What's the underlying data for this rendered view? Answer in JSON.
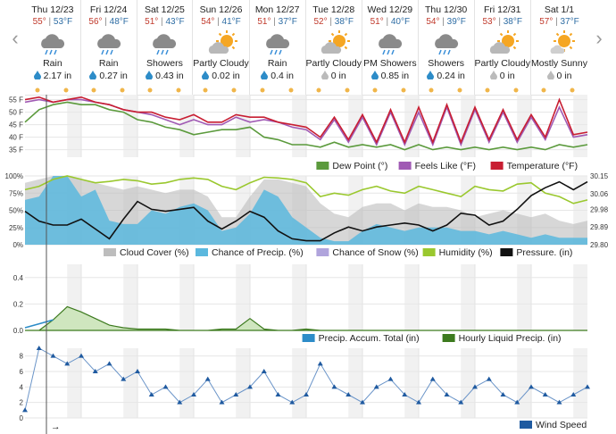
{
  "nav": {
    "prev": "‹",
    "next": "›",
    "bottom_arrow": "→"
  },
  "days": [
    {
      "name": "Thu 12/23",
      "hi": "55°",
      "lo": "53°F",
      "cond": "Rain",
      "precip": "2.17 in",
      "icon": "rain-cloud-icon"
    },
    {
      "name": "Fri 12/24",
      "hi": "56°",
      "lo": "48°F",
      "cond": "Rain",
      "precip": "0.27 in",
      "icon": "rain-cloud-icon"
    },
    {
      "name": "Sat 12/25",
      "hi": "51°",
      "lo": "43°F",
      "cond": "Showers",
      "precip": "0.43 in",
      "icon": "rain-cloud-icon"
    },
    {
      "name": "Sun 12/26",
      "hi": "54°",
      "lo": "41°F",
      "cond": "Partly Cloudy",
      "precip": "0.02 in",
      "icon": "partly-cloudy-icon"
    },
    {
      "name": "Mon 12/27",
      "hi": "51°",
      "lo": "37°F",
      "cond": "Rain",
      "precip": "0.4 in",
      "icon": "rain-cloud-icon"
    },
    {
      "name": "Tue 12/28",
      "hi": "52°",
      "lo": "38°F",
      "cond": "Partly Cloudy",
      "precip": "0 in",
      "icon": "partly-cloudy-icon"
    },
    {
      "name": "Wed 12/29",
      "hi": "51°",
      "lo": "40°F",
      "cond": "PM Showers",
      "precip": "0.85 in",
      "icon": "rain-cloud-icon"
    },
    {
      "name": "Thu 12/30",
      "hi": "54°",
      "lo": "39°F",
      "cond": "Showers",
      "precip": "0.24 in",
      "icon": "rain-cloud-icon"
    },
    {
      "name": "Fri 12/31",
      "hi": "53°",
      "lo": "38°F",
      "cond": "Partly Cloudy",
      "precip": "0 in",
      "icon": "partly-cloudy-icon"
    },
    {
      "name": "Sat 1/1",
      "hi": "57°",
      "lo": "37°F",
      "cond": "Mostly Sunny",
      "precip": "0 in",
      "icon": "mostly-sunny-icon"
    }
  ],
  "colors": {
    "dew": "#5b9a3c",
    "feels": "#a05ab4",
    "temp": "#c81e32",
    "cloud": "#bdbdbd",
    "precip_chance": "#5bb8de",
    "snow": "#b0a4dc",
    "humidity": "#9ac82e",
    "pressure": "#111111",
    "accum": "#2d8cc8",
    "hourly": "#3c7a1e",
    "wind": "#1f5aa0"
  },
  "chart_data": [
    {
      "type": "line",
      "ylim": [
        32,
        57
      ],
      "yticks": [
        35,
        40,
        45,
        50,
        55
      ],
      "yticks_labels": [
        "35 F",
        "40 F",
        "45 F",
        "50 F",
        "55 F"
      ],
      "x_hours": [
        0,
        6,
        12,
        18,
        24,
        30,
        36,
        42,
        48,
        54,
        60,
        66,
        72,
        78,
        84,
        90,
        96,
        102,
        108,
        114,
        120,
        126,
        132,
        138,
        144,
        150,
        156,
        162,
        168,
        174,
        180,
        186,
        192,
        198,
        204,
        210,
        216,
        222,
        228,
        234,
        240
      ],
      "legend": [
        "Dew Point (°)",
        "Feels Like (°F)",
        "Temperature (°F)"
      ],
      "series": [
        {
          "key": "dew",
          "values": [
            46,
            51,
            53,
            54,
            53,
            53,
            51,
            50,
            47,
            46,
            44,
            43,
            41,
            42,
            43,
            43,
            44,
            40,
            39,
            37,
            37,
            36,
            38,
            36,
            37,
            36,
            37,
            35,
            37,
            35,
            36,
            35,
            36,
            35,
            36,
            35,
            36,
            35,
            37,
            36,
            37
          ]
        },
        {
          "key": "feels",
          "values": [
            54,
            55,
            54,
            55,
            55,
            54,
            53,
            51,
            50,
            49,
            47,
            45,
            47,
            45,
            45,
            48,
            46,
            47,
            46,
            44,
            43,
            39,
            47,
            38,
            48,
            37,
            50,
            37,
            50,
            37,
            52,
            37,
            51,
            38,
            50,
            38,
            48,
            39,
            52,
            40,
            41
          ]
        },
        {
          "key": "temp",
          "values": [
            55,
            56,
            54,
            55,
            56,
            54,
            53,
            51,
            50,
            50,
            48,
            47,
            49,
            46,
            46,
            49,
            48,
            48,
            46,
            45,
            44,
            40,
            48,
            39,
            49,
            38,
            51,
            38,
            52,
            38,
            53,
            38,
            52,
            39,
            51,
            39,
            49,
            40,
            55,
            41,
            42
          ]
        }
      ]
    },
    {
      "type": "area",
      "ylim": [
        0,
        100
      ],
      "yticks": [
        0,
        25,
        50,
        75,
        100
      ],
      "yticks_labels": [
        "0%",
        "25%",
        "50%",
        "75%",
        "100%"
      ],
      "y2lim": [
        29.8,
        30.15
      ],
      "y2ticks": [
        "29.80",
        "29.89",
        "29.98",
        "30.06",
        "30.15"
      ],
      "x_hours": [
        0,
        6,
        12,
        18,
        24,
        30,
        36,
        42,
        48,
        54,
        60,
        66,
        72,
        78,
        84,
        90,
        96,
        102,
        108,
        114,
        120,
        126,
        132,
        138,
        144,
        150,
        156,
        162,
        168,
        174,
        180,
        186,
        192,
        198,
        204,
        210,
        216,
        222,
        228,
        234,
        240
      ],
      "legend": [
        "Cloud Cover (%)",
        "Chance of Precip. (%)",
        "Chance of Snow (%)",
        "Humidity (%)",
        "Pressure. (in)"
      ],
      "series": [
        {
          "key": "cloud",
          "values": [
            90,
            95,
            100,
            100,
            95,
            90,
            85,
            80,
            85,
            80,
            75,
            80,
            80,
            70,
            40,
            40,
            70,
            95,
            95,
            90,
            85,
            60,
            45,
            40,
            55,
            60,
            60,
            50,
            60,
            55,
            55,
            50,
            40,
            45,
            50,
            45,
            40,
            45,
            35,
            30,
            35
          ]
        },
        {
          "key": "precip_chance",
          "values": [
            65,
            70,
            100,
            100,
            70,
            80,
            35,
            30,
            30,
            50,
            45,
            55,
            60,
            50,
            20,
            25,
            45,
            80,
            70,
            40,
            25,
            10,
            5,
            5,
            20,
            30,
            25,
            20,
            25,
            25,
            25,
            20,
            20,
            15,
            20,
            15,
            10,
            15,
            10,
            10,
            10
          ]
        },
        {
          "key": "humidity",
          "values": [
            80,
            85,
            95,
            100,
            95,
            90,
            92,
            95,
            93,
            88,
            90,
            95,
            97,
            95,
            85,
            80,
            90,
            98,
            97,
            95,
            90,
            70,
            75,
            72,
            80,
            85,
            78,
            75,
            85,
            80,
            75,
            70,
            85,
            80,
            78,
            88,
            90,
            75,
            70,
            60,
            65
          ]
        },
        {
          "key": "pressure",
          "values": [
            29.97,
            29.92,
            29.9,
            29.9,
            29.93,
            29.88,
            29.83,
            29.93,
            30.02,
            29.98,
            29.97,
            29.98,
            29.99,
            29.92,
            29.88,
            29.92,
            29.97,
            29.94,
            29.87,
            29.83,
            29.82,
            29.82,
            29.86,
            29.89,
            29.87,
            29.89,
            29.9,
            29.91,
            29.9,
            29.87,
            29.9,
            29.96,
            29.95,
            29.9,
            29.92,
            29.98,
            30.05,
            30.09,
            30.12,
            30.08,
            30.12
          ]
        }
      ]
    },
    {
      "type": "area",
      "ylim": [
        0,
        0.5
      ],
      "yticks": [
        0,
        0.2,
        0.4
      ],
      "yticks_labels": [
        "0.0",
        "0.2",
        "0.4"
      ],
      "x_hours": [
        0,
        6,
        12,
        18,
        24,
        30,
        36,
        42,
        48,
        54,
        60,
        66,
        72,
        78,
        84,
        90,
        96,
        102,
        108,
        114,
        120,
        126,
        132,
        138,
        144,
        150,
        156,
        162,
        168,
        174,
        180,
        186,
        192,
        198,
        204,
        210,
        216,
        222,
        228,
        234,
        240
      ],
      "legend": [
        "Precip. Accum. Total (in)",
        "Hourly Liquid Precip. (in)"
      ],
      "series": [
        {
          "key": "accum",
          "values": [
            0.02,
            0.05,
            0.08,
            null,
            null,
            null,
            null,
            null,
            null,
            null,
            null,
            null,
            null,
            null,
            null,
            null,
            null,
            null,
            null,
            null,
            null,
            null,
            null,
            null,
            null,
            null,
            null,
            null,
            null,
            null,
            null,
            null,
            null,
            null,
            null,
            null,
            null,
            null,
            null,
            null,
            null
          ]
        },
        {
          "key": "hourly",
          "values": [
            0,
            0,
            0.08,
            0.18,
            0.14,
            0.09,
            0.04,
            0.02,
            0.01,
            0.01,
            0.01,
            0,
            0,
            0,
            0.01,
            0.01,
            0.09,
            0.01,
            0,
            0,
            0.01,
            0,
            0,
            0,
            0,
            0,
            0,
            0,
            0,
            0,
            0,
            0,
            0,
            0,
            0,
            0,
            0,
            0,
            0,
            0,
            0
          ]
        }
      ]
    },
    {
      "type": "line",
      "ylim": [
        0,
        9
      ],
      "yticks": [
        0,
        2,
        4,
        6,
        8
      ],
      "yticks_labels": [
        "0",
        "2",
        "4",
        "6",
        "8"
      ],
      "x_hours": [
        0,
        6,
        12,
        18,
        24,
        30,
        36,
        42,
        48,
        54,
        60,
        66,
        72,
        78,
        84,
        90,
        96,
        102,
        108,
        114,
        120,
        126,
        132,
        138,
        144,
        150,
        156,
        162,
        168,
        174,
        180,
        186,
        192,
        198,
        204,
        210,
        216,
        222,
        228,
        234,
        240
      ],
      "legend": [
        "Wind Speed"
      ],
      "series": [
        {
          "key": "wind",
          "values": [
            1,
            9,
            8,
            7,
            8,
            6,
            7,
            5,
            6,
            3,
            4,
            2,
            3,
            5,
            2,
            3,
            4,
            6,
            3,
            2,
            3,
            7,
            4,
            3,
            2,
            4,
            5,
            3,
            2,
            5,
            3,
            2,
            4,
            5,
            3,
            2,
            4,
            3,
            2,
            3,
            4
          ]
        }
      ]
    }
  ]
}
